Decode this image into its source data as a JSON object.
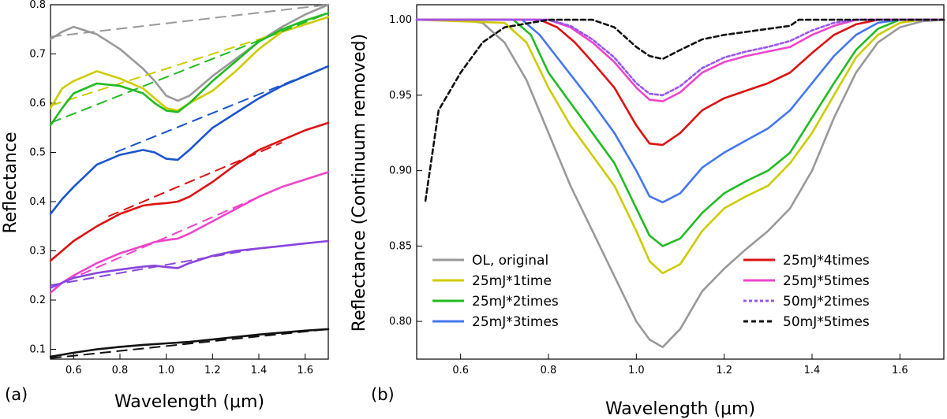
{
  "chart_data": [
    {
      "type": "line",
      "panel_label": "(a)",
      "xlabel": "Wavelength (μm)",
      "ylabel": "Reflectance",
      "xlim": [
        0.5,
        1.7
      ],
      "ylim": [
        0.08,
        0.8
      ],
      "xticks": [
        0.6,
        0.8,
        1.0,
        1.2,
        1.4,
        1.6
      ],
      "xtick_labels": [
        "0.6",
        "0.8",
        "1.0",
        "1.2",
        "1.4",
        "1.6"
      ],
      "yticks": [
        0.1,
        0.2,
        0.3,
        0.4,
        0.5,
        0.6,
        0.7,
        0.8
      ],
      "ytick_labels": [
        "0.1",
        "0.2",
        "0.3",
        "0.4",
        "0.5",
        "0.6",
        "0.7",
        "0.8"
      ],
      "series": [
        {
          "name": "OL, original",
          "color": "#999999",
          "x": [
            0.5,
            0.55,
            0.6,
            0.7,
            0.8,
            0.9,
            0.95,
            1.0,
            1.05,
            1.1,
            1.2,
            1.3,
            1.4,
            1.5,
            1.6,
            1.7
          ],
          "y": [
            0.73,
            0.745,
            0.755,
            0.74,
            0.71,
            0.67,
            0.645,
            0.615,
            0.605,
            0.615,
            0.655,
            0.69,
            0.725,
            0.755,
            0.78,
            0.8
          ],
          "continuum": {
            "x": [
              0.5,
              1.7
            ],
            "y": [
              0.735,
              0.8
            ]
          }
        },
        {
          "name": "25mJ*1time",
          "color": "#cccc00",
          "x": [
            0.5,
            0.55,
            0.6,
            0.7,
            0.8,
            0.9,
            0.95,
            1.0,
            1.05,
            1.1,
            1.2,
            1.3,
            1.4,
            1.5,
            1.6,
            1.7
          ],
          "y": [
            0.59,
            0.63,
            0.645,
            0.665,
            0.65,
            0.63,
            0.61,
            0.59,
            0.585,
            0.6,
            0.625,
            0.665,
            0.71,
            0.745,
            0.76,
            0.775
          ],
          "continuum": {
            "x": [
              0.5,
              1.7
            ],
            "y": [
              0.595,
              0.775
            ]
          }
        },
        {
          "name": "25mJ*2times",
          "color": "#22bb22",
          "x": [
            0.5,
            0.55,
            0.6,
            0.7,
            0.8,
            0.9,
            0.95,
            1.0,
            1.05,
            1.1,
            1.2,
            1.3,
            1.4,
            1.5,
            1.6,
            1.7
          ],
          "y": [
            0.555,
            0.59,
            0.62,
            0.64,
            0.635,
            0.62,
            0.6,
            0.585,
            0.582,
            0.6,
            0.645,
            0.685,
            0.725,
            0.75,
            0.768,
            0.783
          ],
          "continuum": {
            "x": [
              0.5,
              1.7
            ],
            "y": [
              0.56,
              0.783
            ]
          }
        },
        {
          "name": "25mJ*3times",
          "color": "#1a55cc",
          "x": [
            0.5,
            0.55,
            0.6,
            0.7,
            0.8,
            0.9,
            0.95,
            1.0,
            1.05,
            1.1,
            1.2,
            1.3,
            1.4,
            1.5,
            1.6,
            1.7
          ],
          "y": [
            0.375,
            0.405,
            0.43,
            0.475,
            0.495,
            0.505,
            0.5,
            0.487,
            0.485,
            0.505,
            0.55,
            0.58,
            0.61,
            0.635,
            0.655,
            0.675
          ],
          "continuum": {
            "x": [
              0.78,
              1.7
            ],
            "y": [
              0.5,
              0.675
            ]
          }
        },
        {
          "name": "25mJ*4times",
          "color": "#dd1111",
          "x": [
            0.5,
            0.55,
            0.6,
            0.7,
            0.8,
            0.9,
            0.95,
            1.0,
            1.05,
            1.1,
            1.2,
            1.3,
            1.4,
            1.5,
            1.6,
            1.7
          ],
          "y": [
            0.28,
            0.3,
            0.32,
            0.35,
            0.375,
            0.392,
            0.395,
            0.397,
            0.4,
            0.41,
            0.44,
            0.475,
            0.505,
            0.525,
            0.545,
            0.56
          ],
          "continuum": {
            "x": [
              0.75,
              1.5
            ],
            "y": [
              0.37,
              0.52
            ]
          }
        },
        {
          "name": "25mJ*5times",
          "color": "#ee44cc",
          "x": [
            0.5,
            0.55,
            0.6,
            0.7,
            0.8,
            0.9,
            0.95,
            1.0,
            1.05,
            1.1,
            1.2,
            1.3,
            1.4,
            1.5,
            1.6,
            1.7
          ],
          "y": [
            0.215,
            0.235,
            0.25,
            0.275,
            0.295,
            0.31,
            0.318,
            0.322,
            0.325,
            0.335,
            0.36,
            0.385,
            0.41,
            0.43,
            0.445,
            0.46
          ],
          "continuum": {
            "x": [
              0.5,
              1.45
            ],
            "y": [
              0.225,
              0.42
            ]
          }
        },
        {
          "name": "50mJ*2times",
          "color": "#8844dd",
          "x": [
            0.5,
            0.55,
            0.6,
            0.7,
            0.8,
            0.9,
            0.95,
            1.0,
            1.05,
            1.1,
            1.2,
            1.3,
            1.4,
            1.5,
            1.6,
            1.7
          ],
          "y": [
            0.225,
            0.235,
            0.245,
            0.255,
            0.262,
            0.268,
            0.27,
            0.267,
            0.265,
            0.275,
            0.29,
            0.3,
            0.305,
            0.31,
            0.315,
            0.32
          ],
          "continuum": {
            "x": [
              0.5,
              1.4
            ],
            "y": [
              0.23,
              0.305
            ]
          }
        },
        {
          "name": "50mJ*5times",
          "color": "#111111",
          "x": [
            0.5,
            0.6,
            0.7,
            0.8,
            0.9,
            1.0,
            1.1,
            1.2,
            1.3,
            1.4,
            1.5,
            1.6,
            1.7
          ],
          "y": [
            0.085,
            0.093,
            0.1,
            0.105,
            0.109,
            0.112,
            0.115,
            0.12,
            0.125,
            0.13,
            0.134,
            0.138,
            0.141
          ],
          "continuum": {
            "x": [
              0.5,
              1.7
            ],
            "y": [
              0.082,
              0.141
            ]
          }
        }
      ]
    },
    {
      "type": "line",
      "panel_label": "(b)",
      "xlabel": "Wavelength (μm)",
      "ylabel": "Reflectance (Continuum removed)",
      "xlim": [
        0.5,
        1.7
      ],
      "ylim": [
        0.775,
        1.01
      ],
      "xticks": [
        0.6,
        0.8,
        1.0,
        1.2,
        1.4,
        1.6
      ],
      "xtick_labels": [
        "0.6",
        "0.8",
        "1.0",
        "1.2",
        "1.4",
        "1.6"
      ],
      "yticks": [
        0.8,
        0.85,
        0.9,
        0.95,
        1.0
      ],
      "ytick_labels": [
        "0.80",
        "0.85",
        "0.90",
        "0.95",
        "1.00"
      ],
      "series": [
        {
          "name": "OL, original",
          "color": "#999999",
          "style": "solid",
          "x": [
            0.5,
            0.6,
            0.65,
            0.7,
            0.75,
            0.8,
            0.85,
            0.9,
            0.95,
            1.0,
            1.03,
            1.06,
            1.1,
            1.15,
            1.2,
            1.25,
            1.3,
            1.35,
            1.4,
            1.45,
            1.5,
            1.55,
            1.6,
            1.65,
            1.7
          ],
          "y": [
            1.0,
            1.0,
            0.998,
            0.985,
            0.96,
            0.925,
            0.89,
            0.86,
            0.83,
            0.8,
            0.788,
            0.783,
            0.795,
            0.82,
            0.835,
            0.848,
            0.86,
            0.875,
            0.9,
            0.935,
            0.965,
            0.985,
            0.995,
            0.999,
            1.0
          ]
        },
        {
          "name": "25mJ*1time",
          "color": "#cccc00",
          "style": "solid",
          "x": [
            0.5,
            0.7,
            0.75,
            0.8,
            0.85,
            0.9,
            0.95,
            1.0,
            1.03,
            1.06,
            1.1,
            1.15,
            1.2,
            1.25,
            1.3,
            1.35,
            1.4,
            1.45,
            1.5,
            1.55,
            1.6,
            1.65,
            1.7
          ],
          "y": [
            1.0,
            0.998,
            0.985,
            0.955,
            0.93,
            0.91,
            0.89,
            0.86,
            0.84,
            0.832,
            0.838,
            0.86,
            0.875,
            0.883,
            0.89,
            0.905,
            0.925,
            0.95,
            0.975,
            0.99,
            0.998,
            1.0,
            1.0
          ]
        },
        {
          "name": "25mJ*2times",
          "color": "#22bb22",
          "style": "solid",
          "x": [
            0.5,
            0.72,
            0.76,
            0.8,
            0.85,
            0.9,
            0.95,
            1.0,
            1.03,
            1.06,
            1.1,
            1.15,
            1.2,
            1.25,
            1.3,
            1.35,
            1.4,
            1.45,
            1.5,
            1.55,
            1.6,
            1.65,
            1.7
          ],
          "y": [
            1.0,
            1.0,
            0.99,
            0.965,
            0.945,
            0.925,
            0.905,
            0.875,
            0.857,
            0.85,
            0.855,
            0.872,
            0.885,
            0.893,
            0.9,
            0.912,
            0.935,
            0.958,
            0.98,
            0.994,
            1.0,
            1.0,
            1.0
          ]
        },
        {
          "name": "25mJ*3times",
          "color": "#4477ee",
          "style": "solid",
          "x": [
            0.5,
            0.74,
            0.78,
            0.82,
            0.86,
            0.9,
            0.95,
            1.0,
            1.03,
            1.06,
            1.1,
            1.15,
            1.2,
            1.25,
            1.3,
            1.35,
            1.4,
            1.45,
            1.5,
            1.55,
            1.6,
            1.7
          ],
          "y": [
            1.0,
            1.0,
            0.99,
            0.975,
            0.96,
            0.945,
            0.925,
            0.9,
            0.883,
            0.879,
            0.885,
            0.902,
            0.912,
            0.92,
            0.928,
            0.94,
            0.958,
            0.976,
            0.99,
            0.998,
            1.0,
            1.0
          ]
        },
        {
          "name": "25mJ*4times",
          "color": "#dd1111",
          "style": "solid",
          "x": [
            0.5,
            0.78,
            0.82,
            0.86,
            0.9,
            0.95,
            1.0,
            1.03,
            1.06,
            1.1,
            1.15,
            1.2,
            1.25,
            1.3,
            1.35,
            1.4,
            1.45,
            1.5,
            1.55,
            1.6,
            1.7
          ],
          "y": [
            1.0,
            1.0,
            0.995,
            0.985,
            0.972,
            0.955,
            0.93,
            0.918,
            0.917,
            0.925,
            0.94,
            0.948,
            0.953,
            0.958,
            0.965,
            0.978,
            0.99,
            0.997,
            1.0,
            1.0,
            1.0
          ]
        },
        {
          "name": "25mJ*5times",
          "color": "#ee44cc",
          "style": "solid",
          "x": [
            0.5,
            0.8,
            0.85,
            0.9,
            0.95,
            1.0,
            1.03,
            1.06,
            1.1,
            1.15,
            1.2,
            1.25,
            1.3,
            1.35,
            1.4,
            1.45,
            1.5,
            1.55,
            1.6,
            1.7
          ],
          "y": [
            1.0,
            1.0,
            0.995,
            0.985,
            0.972,
            0.955,
            0.947,
            0.946,
            0.952,
            0.965,
            0.972,
            0.976,
            0.979,
            0.982,
            0.99,
            0.996,
            1.0,
            1.0,
            1.0,
            1.0
          ]
        },
        {
          "name": "50mJ*2times",
          "color": "#9955ee",
          "style": "dotted",
          "x": [
            0.5,
            0.8,
            0.85,
            0.9,
            0.95,
            1.0,
            1.03,
            1.06,
            1.1,
            1.15,
            1.2,
            1.25,
            1.3,
            1.35,
            1.4,
            1.45,
            1.5,
            1.6,
            1.7
          ],
          "y": [
            1.0,
            1.0,
            0.996,
            0.987,
            0.975,
            0.958,
            0.951,
            0.95,
            0.956,
            0.968,
            0.975,
            0.979,
            0.982,
            0.986,
            0.993,
            0.998,
            1.0,
            1.0,
            1.0
          ]
        },
        {
          "name": "50mJ*5times",
          "color": "#111111",
          "style": "dashed",
          "x": [
            0.52,
            0.55,
            0.6,
            0.65,
            0.7,
            0.8,
            0.9,
            0.95,
            1.0,
            1.03,
            1.06,
            1.1,
            1.15,
            1.2,
            1.25,
            1.3,
            1.35,
            1.37,
            1.4,
            1.5,
            1.6,
            1.7
          ],
          "y": [
            0.88,
            0.94,
            0.965,
            0.985,
            0.995,
            1.0,
            1.0,
            0.995,
            0.982,
            0.976,
            0.974,
            0.98,
            0.987,
            0.99,
            0.992,
            0.994,
            0.996,
            1.0,
            1.0,
            1.0,
            1.0,
            1.0
          ]
        }
      ],
      "legend_left": [
        "OL, original",
        "25mJ*1time",
        "25mJ*2times",
        "25mJ*3times"
      ],
      "legend_right": [
        "25mJ*4times",
        "25mJ*5times",
        "50mJ*2times",
        "50mJ*5times"
      ]
    }
  ]
}
